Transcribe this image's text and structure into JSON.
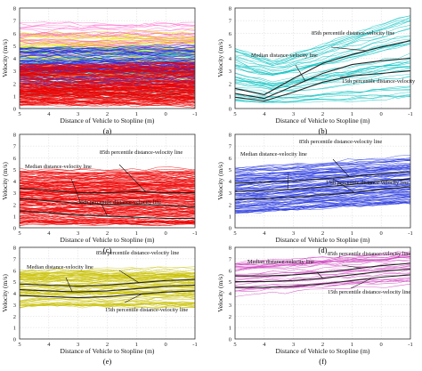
{
  "figure": {
    "panels": [
      {
        "id": "a",
        "panel_label": "(a)",
        "xlabel": "Distance of Vehicle to Stopline (m)",
        "ylabel": "Velocity (m/s)",
        "annotations": []
      },
      {
        "id": "b",
        "panel_label": "(b)",
        "xlabel": "Distance of Vehicle to Stopline (m)",
        "ylabel": "Velocity (m/s)",
        "annotations": [
          {
            "text": "85th percentile distance-velocity line",
            "target": "p85"
          },
          {
            "text": "Median distance-velocity line",
            "target": "median"
          },
          {
            "text": "15th percentile distance-velocity",
            "target": "p15"
          }
        ]
      },
      {
        "id": "c",
        "panel_label": "(c)",
        "xlabel": "Distance of Vehicle to Stopline (m)",
        "ylabel": "Velocity (m/s)",
        "annotations": [
          {
            "text": "85th percentile distance-velocity line",
            "target": "p85"
          },
          {
            "text": "Median distance-velocity line",
            "target": "median"
          },
          {
            "text": "15th percentile distance-velocity line",
            "target": "p15"
          }
        ]
      },
      {
        "id": "d",
        "panel_label": "(d)",
        "xlabel": "Distance of Vehicle to Stopline (m)",
        "ylabel": "Velocity (m/s)",
        "annotations": [
          {
            "text": "Median distance-velocity line",
            "target": "median"
          },
          {
            "text": "85th percentile distance-velocity line",
            "target": "p85"
          },
          {
            "text": "15th percentile distance-velocity line",
            "target": "p15"
          }
        ]
      },
      {
        "id": "e",
        "panel_label": "(e)",
        "xlabel": "Distance of Vehicle to Stopline (m)",
        "ylabel": "Velocity (m/s)",
        "annotations": [
          {
            "text": "85th percentile distance-velocity line",
            "target": "p85"
          },
          {
            "text": "Median distance-velocity line",
            "target": "median"
          },
          {
            "text": "15th percentile distance-velocity line",
            "target": "p15"
          }
        ]
      },
      {
        "id": "f",
        "panel_label": "(f)",
        "xlabel": "Distance of Vehicle to Stopline (m)",
        "ylabel": "Velocity (m/s)",
        "annotations": [
          {
            "text": "Median distance-velocity line",
            "target": "median"
          },
          {
            "text": "85th percentile distance-velocity line",
            "target": "p85"
          },
          {
            "text": "15th percentile distance-velocity line",
            "target": "p15"
          }
        ]
      }
    ]
  },
  "chart_data": [
    {
      "type": "line",
      "panel": "a",
      "xlabel": "Distance of Vehicle to Stopline (m)",
      "ylabel": "Velocity (m/s)",
      "xlim": [
        5,
        -1
      ],
      "ylim": [
        0,
        8
      ],
      "xticks": [
        5,
        4,
        3,
        2,
        1,
        0,
        -1
      ],
      "yticks": [
        0,
        1,
        2,
        3,
        4,
        5,
        6,
        7,
        8
      ],
      "grid": true,
      "trajectory_bands": [
        {
          "color": "#e8e000",
          "low": 2.5,
          "high": 6.0,
          "count": 70
        },
        {
          "color": "#ff66cc",
          "low": 4.3,
          "high": 7.0,
          "count": 25
        },
        {
          "color": "#00c8c8",
          "low": 1.0,
          "high": 5.0,
          "count": 45
        },
        {
          "color": "#2222ee",
          "low": 1.6,
          "high": 4.8,
          "count": 80
        },
        {
          "color": "#ee0000",
          "low": 0.3,
          "high": 3.5,
          "count": 150
        }
      ],
      "summary_lines": []
    },
    {
      "type": "line",
      "panel": "b",
      "xlabel": "Distance of Vehicle to Stopline (m)",
      "ylabel": "Velocity (m/s)",
      "xlim": [
        5,
        -1
      ],
      "ylim": [
        0,
        8
      ],
      "xticks": [
        5,
        4,
        3,
        2,
        1,
        0,
        -1
      ],
      "yticks": [
        0,
        1,
        2,
        3,
        4,
        5,
        6,
        7,
        8
      ],
      "grid": true,
      "trajectory_bands": [
        {
          "color": "#00c0c0",
          "low": 0.6,
          "high": 5.4,
          "count": 45,
          "dip": true
        }
      ],
      "summary_lines": [
        {
          "name": "p85",
          "x": [
            5,
            4,
            3,
            2,
            1,
            0,
            -1
          ],
          "y": [
            1.6,
            1.1,
            2.4,
            3.6,
            4.3,
            4.9,
            5.4
          ]
        },
        {
          "name": "median",
          "x": [
            5,
            4,
            3,
            2,
            1,
            0,
            -1
          ],
          "y": [
            1.2,
            0.8,
            1.8,
            2.8,
            3.5,
            3.8,
            4.0
          ]
        },
        {
          "name": "p15",
          "x": [
            5,
            4,
            3,
            2,
            1,
            0,
            -1
          ],
          "y": [
            0.9,
            0.6,
            1.3,
            2.1,
            2.6,
            2.8,
            3.0
          ]
        }
      ]
    },
    {
      "type": "line",
      "panel": "c",
      "xlabel": "Distance of Vehicle to Stopline (m)",
      "ylabel": "Velocity (m/s)",
      "xlim": [
        5,
        -1
      ],
      "ylim": [
        0,
        8
      ],
      "xticks": [
        5,
        4,
        3,
        2,
        1,
        0,
        -1
      ],
      "yticks": [
        0,
        1,
        2,
        3,
        4,
        5,
        6,
        7,
        8
      ],
      "grid": true,
      "trajectory_bands": [
        {
          "color": "#ee0000",
          "low": 0.2,
          "high": 5.0,
          "count": 160
        }
      ],
      "summary_lines": [
        {
          "name": "p85",
          "x": [
            5,
            4,
            3,
            2,
            1,
            0,
            -1
          ],
          "y": [
            3.4,
            3.2,
            3.0,
            3.0,
            3.1,
            3.0,
            3.0
          ]
        },
        {
          "name": "median",
          "x": [
            5,
            4,
            3,
            2,
            1,
            0,
            -1
          ],
          "y": [
            2.5,
            2.3,
            2.1,
            2.0,
            2.0,
            1.9,
            1.8
          ]
        },
        {
          "name": "p15",
          "x": [
            5,
            4,
            3,
            2,
            1,
            0,
            -1
          ],
          "y": [
            1.4,
            1.3,
            1.1,
            1.0,
            0.9,
            0.8,
            0.8
          ]
        }
      ]
    },
    {
      "type": "line",
      "panel": "d",
      "xlabel": "Distance of Vehicle to Stopline (m)",
      "ylabel": "Velocity (m/s)",
      "xlim": [
        5,
        -1
      ],
      "ylim": [
        0,
        8
      ],
      "xticks": [
        5,
        4,
        3,
        2,
        1,
        0,
        -1
      ],
      "yticks": [
        0,
        1,
        2,
        3,
        4,
        5,
        6,
        7,
        8
      ],
      "grid": true,
      "trajectory_bands": [
        {
          "color": "#2233dd",
          "low": 1.2,
          "high": 5.2,
          "count": 90,
          "rising": true
        }
      ],
      "summary_lines": [
        {
          "name": "p85",
          "x": [
            5,
            4,
            3,
            2,
            1,
            0,
            -1
          ],
          "y": [
            3.8,
            3.9,
            4.0,
            4.2,
            4.4,
            4.6,
            4.8
          ]
        },
        {
          "name": "median",
          "x": [
            5,
            4,
            3,
            2,
            1,
            0,
            -1
          ],
          "y": [
            3.1,
            3.2,
            3.3,
            3.5,
            3.7,
            4.0,
            4.2
          ]
        },
        {
          "name": "p15",
          "x": [
            5,
            4,
            3,
            2,
            1,
            0,
            -1
          ],
          "y": [
            2.4,
            2.5,
            2.6,
            2.8,
            3.0,
            3.3,
            3.5
          ]
        }
      ]
    },
    {
      "type": "line",
      "panel": "e",
      "xlabel": "Distance of Vehicle to Stopline (m)",
      "ylabel": "Velocity (m/s)",
      "xlim": [
        5,
        -1
      ],
      "ylim": [
        0,
        8
      ],
      "xticks": [
        5,
        4,
        3,
        2,
        1,
        0,
        -1
      ],
      "yticks": [
        0,
        1,
        2,
        3,
        4,
        5,
        6,
        7,
        8
      ],
      "grid": true,
      "trajectory_bands": [
        {
          "color": "#c8c000",
          "low": 2.8,
          "high": 6.0,
          "count": 80
        }
      ],
      "summary_lines": [
        {
          "name": "p85",
          "x": [
            5,
            4,
            3,
            2,
            1,
            0,
            -1
          ],
          "y": [
            4.8,
            4.7,
            4.6,
            4.7,
            4.9,
            5.1,
            5.2
          ]
        },
        {
          "name": "median",
          "x": [
            5,
            4,
            3,
            2,
            1,
            0,
            -1
          ],
          "y": [
            4.3,
            4.2,
            4.1,
            4.2,
            4.4,
            4.6,
            4.7
          ]
        },
        {
          "name": "p15",
          "x": [
            5,
            4,
            3,
            2,
            1,
            0,
            -1
          ],
          "y": [
            3.8,
            3.7,
            3.6,
            3.7,
            3.9,
            4.1,
            4.2
          ]
        }
      ]
    },
    {
      "type": "line",
      "panel": "f",
      "xlabel": "Distance of Vehicle to Stopline (m)",
      "ylabel": "Velocity (m/s)",
      "xlim": [
        5,
        -1
      ],
      "ylim": [
        0,
        8
      ],
      "xticks": [
        5,
        4,
        3,
        2,
        1,
        0,
        -1
      ],
      "yticks": [
        0,
        1,
        2,
        3,
        4,
        5,
        6,
        7,
        8
      ],
      "grid": true,
      "trajectory_bands": [
        {
          "color": "#cc33bb",
          "low": 3.8,
          "high": 7.0,
          "count": 28,
          "rising": true
        }
      ],
      "summary_lines": [
        {
          "name": "p85",
          "x": [
            5,
            4,
            3,
            2,
            1,
            0,
            -1
          ],
          "y": [
            5.5,
            5.5,
            5.6,
            5.8,
            6.1,
            6.4,
            6.6
          ]
        },
        {
          "name": "median",
          "x": [
            5,
            4,
            3,
            2,
            1,
            0,
            -1
          ],
          "y": [
            5.0,
            5.0,
            5.1,
            5.3,
            5.6,
            5.9,
            6.1
          ]
        },
        {
          "name": "p15",
          "x": [
            5,
            4,
            3,
            2,
            1,
            0,
            -1
          ],
          "y": [
            4.5,
            4.5,
            4.6,
            4.8,
            5.1,
            5.4,
            5.6
          ]
        }
      ]
    }
  ]
}
